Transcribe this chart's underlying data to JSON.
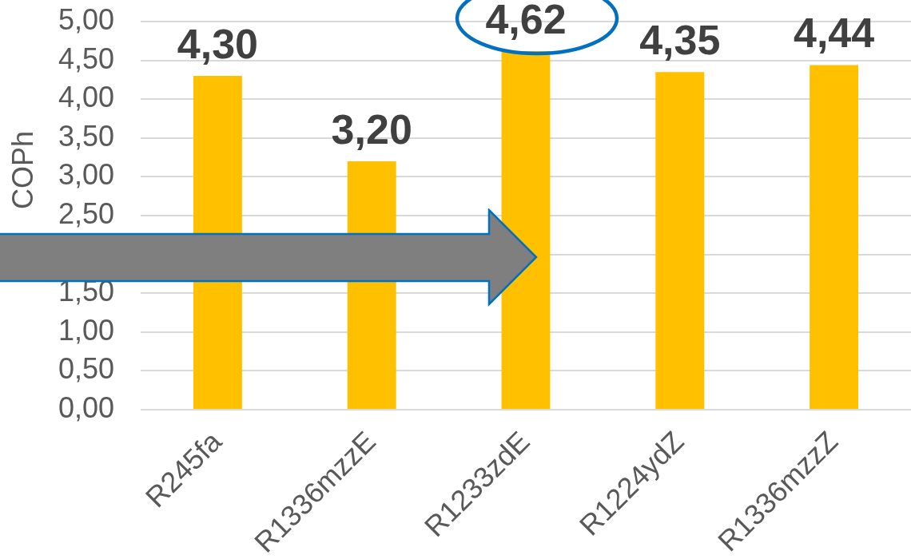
{
  "chart_data": {
    "type": "bar",
    "ylabel": "COPh",
    "categories": [
      "R245fa",
      "R1336mzzE",
      "R1233zdE",
      "R1224ydZ",
      "R1336mzzZ"
    ],
    "values": [
      4.3,
      3.2,
      4.62,
      4.35,
      4.44
    ],
    "color": "#ffc000",
    "value_labels": [
      "4,30",
      "3,20",
      "4,62",
      "4,35",
      "4,44"
    ],
    "ylim": [
      0,
      5
    ],
    "yticks": [
      {
        "value": 0,
        "label": "0,00"
      },
      {
        "value": 0.5,
        "label": "0,50"
      },
      {
        "value": 1,
        "label": "1,00"
      },
      {
        "value": 1.5,
        "label": "1,50"
      },
      {
        "value": 2,
        "label": null
      },
      {
        "value": 2.5,
        "label": "2,50"
      },
      {
        "value": 3,
        "label": "3,00"
      },
      {
        "value": 3.5,
        "label": "3,50"
      },
      {
        "value": 4,
        "label": "4,00"
      },
      {
        "value": 4.5,
        "label": "4,50"
      },
      {
        "value": 5,
        "label": "5,00"
      }
    ],
    "grid": "y"
  }
}
